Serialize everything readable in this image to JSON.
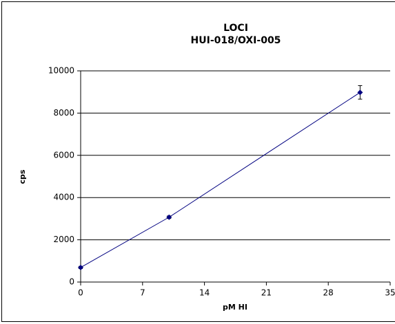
{
  "chart_data": {
    "type": "scatter",
    "title": [
      "LOCI",
      "HUI-018/OXI-005"
    ],
    "x_label": "pM HI",
    "y_label": "cps",
    "x": [
      0,
      10,
      31.6
    ],
    "values": [
      690,
      3070,
      8980
    ],
    "errors": [
      50,
      60,
      320
    ],
    "color": "#000080",
    "xlim": [
      0,
      35
    ],
    "xticks": [
      0,
      7,
      14,
      21,
      28,
      35
    ],
    "ylim": [
      0,
      10000
    ],
    "yticks": [
      0,
      2000,
      4000,
      6000,
      8000,
      10000
    ],
    "grid": true
  }
}
